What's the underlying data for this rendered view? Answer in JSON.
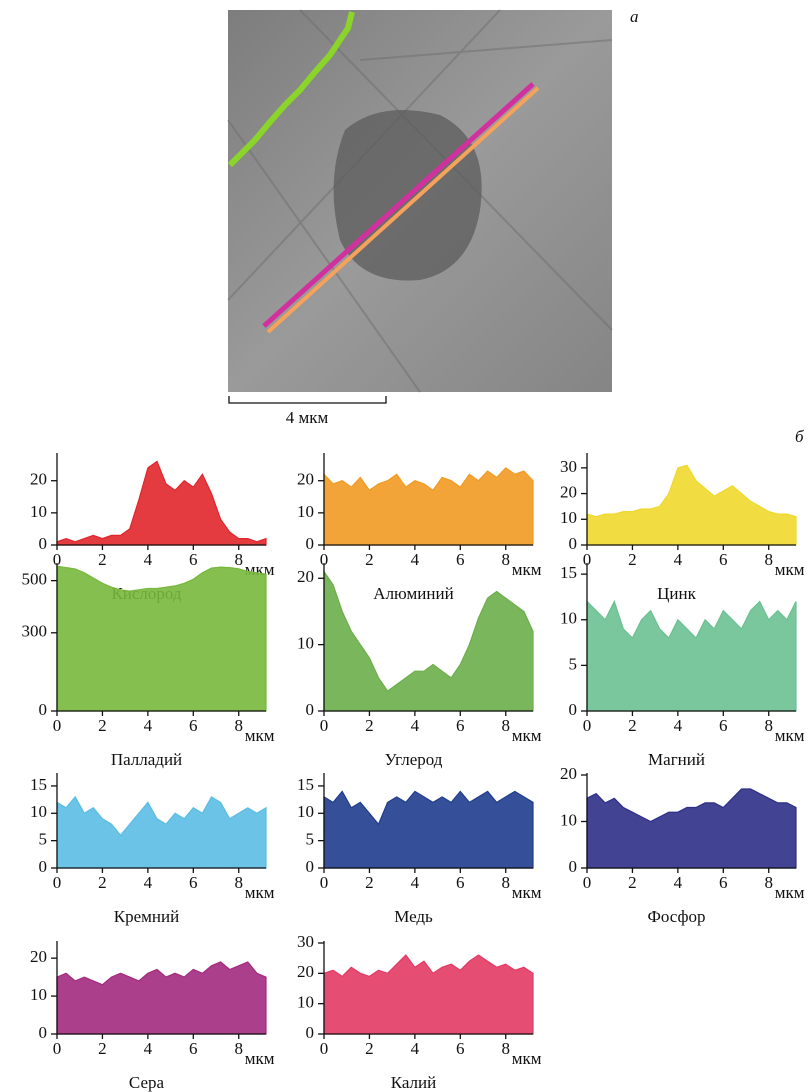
{
  "figure": {
    "panel_a": "а",
    "panel_b": "б",
    "scale_bar": "4 мкм"
  },
  "chart_data": [
    {
      "type": "area",
      "title": "Кислород",
      "xlabel": "мкм",
      "color": "#e0262b",
      "xlim": [
        0,
        9.2
      ],
      "xticks": [
        0,
        2,
        4,
        6,
        8
      ],
      "ylim": [
        0,
        28
      ],
      "yticks": [
        0,
        10,
        20
      ],
      "x": [
        0,
        0.4,
        0.8,
        1.2,
        1.6,
        2,
        2.4,
        2.8,
        3.2,
        3.6,
        4,
        4.4,
        4.8,
        5.2,
        5.6,
        6,
        6.4,
        6.8,
        7.2,
        7.6,
        8,
        8.4,
        8.8,
        9.2
      ],
      "values": [
        1,
        2,
        1,
        2,
        3,
        2,
        3,
        3,
        5,
        14,
        24,
        26,
        19,
        17,
        20,
        18,
        22,
        16,
        8,
        4,
        2,
        2,
        1,
        2
      ]
    },
    {
      "type": "area",
      "title": "Алюминий",
      "xlabel": "мкм",
      "color": "#f29a22",
      "xlim": [
        0,
        9.2
      ],
      "xticks": [
        0,
        2,
        4,
        6,
        8
      ],
      "ylim": [
        0,
        28
      ],
      "yticks": [
        0,
        10,
        20
      ],
      "x": [
        0,
        0.4,
        0.8,
        1.2,
        1.6,
        2,
        2.4,
        2.8,
        3.2,
        3.6,
        4,
        4.4,
        4.8,
        5.2,
        5.6,
        6,
        6.4,
        6.8,
        7.2,
        7.6,
        8,
        8.4,
        8.8,
        9.2
      ],
      "values": [
        22,
        19,
        20,
        18,
        21,
        17,
        19,
        20,
        22,
        18,
        20,
        19,
        17,
        21,
        20,
        18,
        22,
        20,
        23,
        21,
        24,
        22,
        23,
        20
      ]
    },
    {
      "type": "area",
      "title": "Цинк",
      "xlabel": "мкм",
      "color": "#f0d82c",
      "xlim": [
        0,
        9.2
      ],
      "xticks": [
        0,
        2,
        4,
        6,
        8
      ],
      "ylim": [
        0,
        35
      ],
      "yticks": [
        0,
        10,
        20,
        30
      ],
      "x": [
        0,
        0.4,
        0.8,
        1.2,
        1.6,
        2,
        2.4,
        2.8,
        3.2,
        3.6,
        4,
        4.4,
        4.8,
        5.2,
        5.6,
        6,
        6.4,
        6.8,
        7.2,
        7.6,
        8,
        8.4,
        8.8,
        9.2
      ],
      "values": [
        12,
        11,
        12,
        12,
        13,
        13,
        14,
        14,
        15,
        20,
        30,
        31,
        25,
        22,
        19,
        21,
        23,
        20,
        17,
        15,
        13,
        12,
        12,
        11
      ]
    },
    {
      "type": "area",
      "title": "Палладий",
      "xlabel": "мкм",
      "color": "#78b83c",
      "xlim": [
        0,
        9.2
      ],
      "xticks": [
        0,
        2,
        4,
        6,
        8
      ],
      "ylim": [
        0,
        560
      ],
      "yticks": [
        0,
        300,
        500
      ],
      "x": [
        0,
        0.4,
        0.8,
        1.2,
        1.6,
        2,
        2.4,
        2.8,
        3.2,
        3.6,
        4,
        4.4,
        4.8,
        5.2,
        5.6,
        6,
        6.4,
        6.8,
        7.2,
        7.6,
        8,
        8.4,
        8.8,
        9.2
      ],
      "values": [
        555,
        550,
        545,
        530,
        510,
        490,
        475,
        465,
        460,
        465,
        470,
        470,
        475,
        480,
        490,
        505,
        530,
        548,
        552,
        550,
        545,
        535,
        530,
        525
      ]
    },
    {
      "type": "area",
      "title": "Углерод",
      "xlabel": "мкм",
      "color": "#6cae4a",
      "xlim": [
        0,
        9.2
      ],
      "xticks": [
        0,
        2,
        4,
        6,
        8
      ],
      "ylim": [
        0,
        22
      ],
      "yticks": [
        0,
        10,
        20
      ],
      "x": [
        0,
        0.4,
        0.8,
        1.2,
        1.6,
        2,
        2.4,
        2.8,
        3.2,
        3.6,
        4,
        4.4,
        4.8,
        5.2,
        5.6,
        6,
        6.4,
        6.8,
        7.2,
        7.6,
        8,
        8.4,
        8.8,
        9.2
      ],
      "values": [
        21,
        19,
        15,
        12,
        10,
        8,
        5,
        3,
        4,
        5,
        6,
        6,
        7,
        6,
        5,
        7,
        10,
        14,
        17,
        18,
        17,
        16,
        15,
        12
      ]
    },
    {
      "type": "area",
      "title": "Магний",
      "xlabel": "мкм",
      "color": "#6cc092",
      "xlim": [
        0,
        9.2
      ],
      "xticks": [
        0,
        2,
        4,
        6,
        8
      ],
      "ylim": [
        0,
        16
      ],
      "yticks": [
        0,
        5,
        10,
        15
      ],
      "x": [
        0,
        0.4,
        0.8,
        1.2,
        1.6,
        2,
        2.4,
        2.8,
        3.2,
        3.6,
        4,
        4.4,
        4.8,
        5.2,
        5.6,
        6,
        6.4,
        6.8,
        7.2,
        7.6,
        8,
        8.4,
        8.8,
        9.2
      ],
      "values": [
        12,
        11,
        10,
        12,
        9,
        8,
        10,
        11,
        9,
        8,
        10,
        9,
        8,
        10,
        9,
        11,
        10,
        9,
        11,
        12,
        10,
        11,
        10,
        12
      ]
    },
    {
      "type": "area",
      "title": "Кремний",
      "xlabel": "мкм",
      "color": "#5bbce4",
      "xlim": [
        0,
        9.2
      ],
      "xticks": [
        0,
        2,
        4,
        6,
        8
      ],
      "ylim": [
        0,
        17
      ],
      "yticks": [
        0,
        5,
        10,
        15
      ],
      "x": [
        0,
        0.4,
        0.8,
        1.2,
        1.6,
        2,
        2.4,
        2.8,
        3.2,
        3.6,
        4,
        4.4,
        4.8,
        5.2,
        5.6,
        6,
        6.4,
        6.8,
        7.2,
        7.6,
        8,
        8.4,
        8.8,
        9.2
      ],
      "values": [
        12,
        11,
        13,
        10,
        11,
        9,
        8,
        6,
        8,
        10,
        12,
        9,
        8,
        10,
        9,
        11,
        10,
        13,
        12,
        9,
        10,
        11,
        10,
        11
      ]
    },
    {
      "type": "area",
      "title": "Медь",
      "xlabel": "мкм",
      "color": "#1f3d8d",
      "xlim": [
        0,
        9.2
      ],
      "xticks": [
        0,
        2,
        4,
        6,
        8
      ],
      "ylim": [
        0,
        17
      ],
      "yticks": [
        0,
        5,
        10,
        15
      ],
      "x": [
        0,
        0.4,
        0.8,
        1.2,
        1.6,
        2,
        2.4,
        2.8,
        3.2,
        3.6,
        4,
        4.4,
        4.8,
        5.2,
        5.6,
        6,
        6.4,
        6.8,
        7.2,
        7.6,
        8,
        8.4,
        8.8,
        9.2
      ],
      "values": [
        13,
        12,
        14,
        11,
        12,
        10,
        8,
        12,
        13,
        12,
        14,
        13,
        12,
        13,
        12,
        14,
        12,
        13,
        14,
        12,
        13,
        14,
        13,
        12
      ]
    },
    {
      "type": "area",
      "title": "Фосфор",
      "xlabel": "мкм",
      "color": "#2e2f86",
      "xlim": [
        0,
        9.2
      ],
      "xticks": [
        0,
        2,
        4,
        6,
        8
      ],
      "ylim": [
        0,
        20
      ],
      "yticks": [
        0,
        10,
        20
      ],
      "x": [
        0,
        0.4,
        0.8,
        1.2,
        1.6,
        2,
        2.4,
        2.8,
        3.2,
        3.6,
        4,
        4.4,
        4.8,
        5.2,
        5.6,
        6,
        6.4,
        6.8,
        7.2,
        7.6,
        8,
        8.4,
        8.8,
        9.2
      ],
      "values": [
        15,
        16,
        14,
        15,
        13,
        12,
        11,
        10,
        11,
        12,
        12,
        13,
        13,
        14,
        14,
        13,
        15,
        17,
        17,
        16,
        15,
        14,
        14,
        13
      ]
    },
    {
      "type": "area",
      "title": "Сера",
      "xlabel": "мкм",
      "color": "#a22a7e",
      "xlim": [
        0,
        9.2
      ],
      "xticks": [
        0,
        2,
        4,
        6,
        8
      ],
      "ylim": [
        0,
        24
      ],
      "yticks": [
        0,
        10,
        20
      ],
      "x": [
        0,
        0.4,
        0.8,
        1.2,
        1.6,
        2,
        2.4,
        2.8,
        3.2,
        3.6,
        4,
        4.4,
        4.8,
        5.2,
        5.6,
        6,
        6.4,
        6.8,
        7.2,
        7.6,
        8,
        8.4,
        8.8,
        9.2
      ],
      "values": [
        15,
        16,
        14,
        15,
        14,
        13,
        15,
        16,
        15,
        14,
        16,
        17,
        15,
        16,
        15,
        17,
        16,
        18,
        19,
        17,
        18,
        19,
        16,
        15
      ]
    },
    {
      "type": "area",
      "title": "Калий",
      "xlabel": "мкм",
      "color": "#e23a64",
      "xlim": [
        0,
        9.2
      ],
      "xticks": [
        0,
        2,
        4,
        6,
        8
      ],
      "ylim": [
        0,
        30
      ],
      "yticks": [
        0,
        10,
        20,
        30
      ],
      "x": [
        0,
        0.4,
        0.8,
        1.2,
        1.6,
        2,
        2.4,
        2.8,
        3.2,
        3.6,
        4,
        4.4,
        4.8,
        5.2,
        5.6,
        6,
        6.4,
        6.8,
        7.2,
        7.6,
        8,
        8.4,
        8.8,
        9.2
      ],
      "values": [
        20,
        21,
        19,
        22,
        20,
        19,
        21,
        20,
        23,
        26,
        22,
        24,
        20,
        22,
        23,
        21,
        24,
        26,
        24,
        22,
        23,
        21,
        22,
        20
      ]
    }
  ]
}
